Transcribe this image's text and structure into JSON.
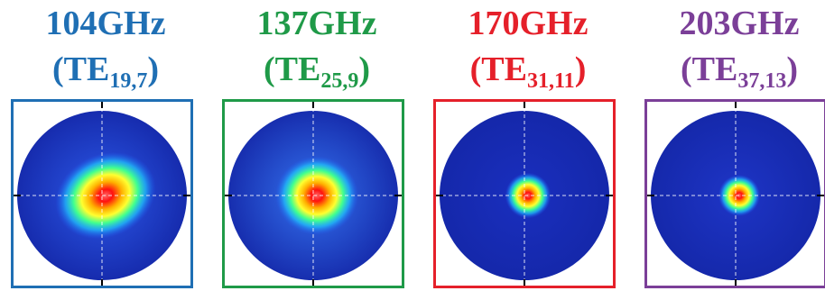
{
  "panels": [
    {
      "frequency": "104GHz",
      "mode_main": "TE",
      "mode_sub": "19,7",
      "color": "#1f6fb4",
      "background_tone": "#2c59e8",
      "beam_scale": 1.0,
      "beam_elongation": 1.25,
      "beam_rotation": -25
    },
    {
      "frequency": "137GHz",
      "mode_main": "TE",
      "mode_sub": "25,9",
      "color": "#1f9a48",
      "background_tone": "#3472ee",
      "beam_scale": 0.95,
      "beam_elongation": 1.05,
      "beam_rotation": 0
    },
    {
      "frequency": "170GHz",
      "mode_main": "TE",
      "mode_sub": "31,11",
      "color": "#e5202a",
      "background_tone": "#1a2fbf",
      "beam_scale": 0.55,
      "beam_elongation": 1.0,
      "beam_rotation": 0
    },
    {
      "frequency": "203GHz",
      "mode_main": "TE",
      "mode_sub": "37,13",
      "color": "#7b3f98",
      "background_tone": "#1e35c6",
      "beam_scale": 0.5,
      "beam_elongation": 1.0,
      "beam_rotation": 0
    }
  ]
}
